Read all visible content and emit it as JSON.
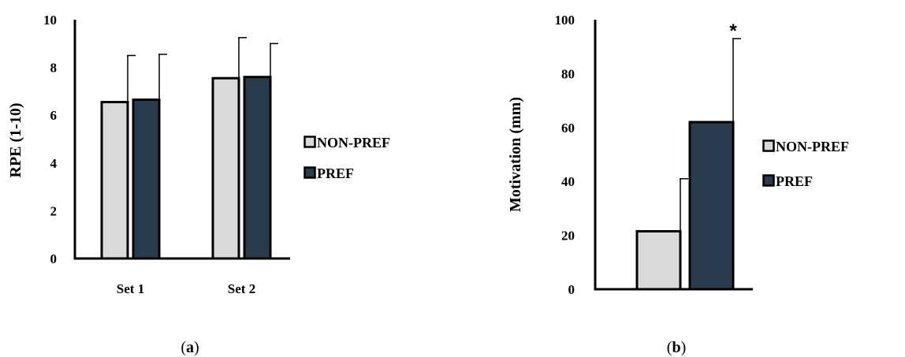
{
  "chart_data": [
    {
      "panel": "a",
      "type": "bar",
      "title": "",
      "xlabel": "",
      "ylabel": "RPE (1-10)",
      "ylim": [
        0,
        10
      ],
      "yticks": [
        0,
        2,
        4,
        6,
        8,
        10
      ],
      "categories": [
        "Set 1",
        "Set 2"
      ],
      "series": [
        {
          "name": "NON-PREF",
          "values": [
            6.55,
            7.55
          ],
          "error": [
            1.95,
            1.7
          ],
          "color": "#d9d9d9"
        },
        {
          "name": "PREF",
          "values": [
            6.65,
            7.6
          ],
          "error": [
            1.9,
            1.4
          ],
          "color": "#2a3b4d"
        }
      ],
      "legend": "right",
      "grid": false
    },
    {
      "panel": "b",
      "type": "bar",
      "title": "",
      "xlabel": "",
      "ylabel": "Motivation (mm)",
      "ylim": [
        0,
        100
      ],
      "yticks": [
        0,
        20,
        40,
        60,
        80,
        100
      ],
      "categories": [
        ""
      ],
      "series": [
        {
          "name": "NON-PREF",
          "values": [
            21.5
          ],
          "error": [
            19.5
          ],
          "color": "#d9d9d9"
        },
        {
          "name": "PREF",
          "values": [
            62
          ],
          "error": [
            31
          ],
          "color": "#2a3b4d"
        }
      ],
      "annotations": [
        {
          "text": "*",
          "series": "PREF"
        }
      ],
      "legend": "right",
      "grid": false
    }
  ],
  "captions": [
    {
      "open": "(",
      "letter": "a",
      "close": ")"
    },
    {
      "open": "(",
      "letter": "b",
      "close": ")"
    }
  ]
}
